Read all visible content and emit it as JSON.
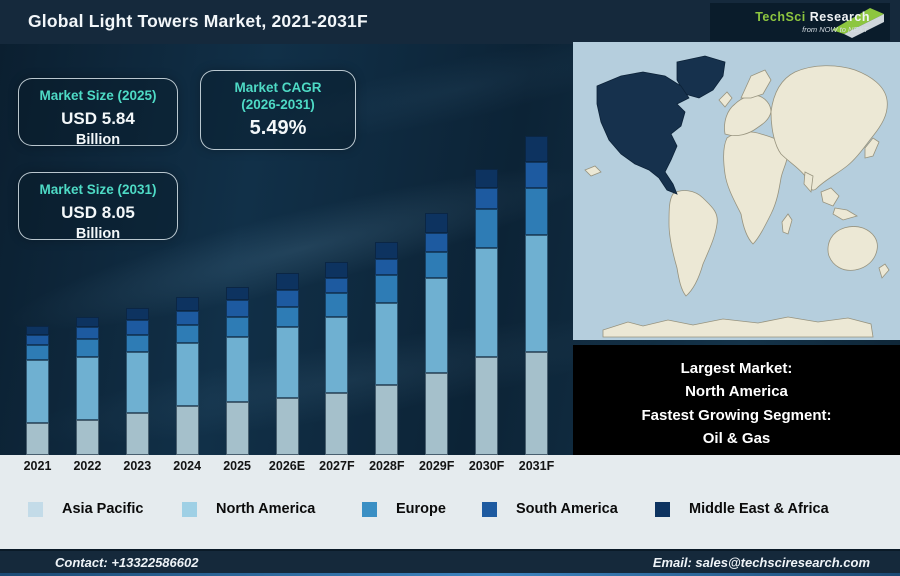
{
  "header": {
    "title": "Global Light Towers Market, 2021-2031F",
    "logo": {
      "brand_primary": "TechSci",
      "brand_secondary": "Research",
      "tagline": "from NOW to NEXT"
    }
  },
  "stat_boxes": [
    {
      "title": "Market Size (2025)",
      "value": "USD 5.84",
      "unit": "Billion"
    },
    {
      "title": "Market CAGR (2026-2031)",
      "value": "5.49%",
      "unit": ""
    },
    {
      "title": "Market Size (2031)",
      "value": "USD 8.05",
      "unit": "Billion"
    }
  ],
  "highlight_box": {
    "lines": [
      "Largest Market:",
      "North America",
      "Fastest Growing Segment:",
      "Oil & Gas"
    ]
  },
  "chart_data": {
    "type": "bar",
    "stacked": true,
    "title": "Global Light Towers Market, 2021-2031F",
    "categories": [
      "2021",
      "2022",
      "2023",
      "2024",
      "2025",
      "2026E",
      "2027F",
      "2028F",
      "2029F",
      "2030F",
      "2031F"
    ],
    "value_unit": "relative height (no y-axis shown in figure; values are pixel-proportional)",
    "series": [
      {
        "name": "Asia Pacific",
        "color": "#a5c0cb",
        "values": [
          32,
          35,
          42,
          49,
          53,
          57,
          62,
          70,
          82,
          98,
          103
        ]
      },
      {
        "name": "North America",
        "color": "#6fb0d1",
        "values": [
          63,
          63,
          61,
          63,
          65,
          71,
          76,
          82,
          95,
          109,
          117
        ]
      },
      {
        "name": "Europe",
        "color": "#2e7cb5",
        "values": [
          15,
          18,
          17,
          18,
          20,
          20,
          24,
          28,
          26,
          39,
          47
        ]
      },
      {
        "name": "South America",
        "color": "#1d5aa0",
        "values": [
          10,
          12,
          15,
          14,
          17,
          17,
          15,
          16,
          19,
          21,
          26
        ]
      },
      {
        "name": "Middle East & Africa",
        "color": "#0d3360",
        "values": [
          9,
          10,
          12,
          14,
          13,
          17,
          16,
          17,
          20,
          19,
          26
        ]
      }
    ],
    "labeled_anchors": {
      "market_size_2025": "USD 5.84 Billion",
      "market_size_2031": "USD 8.05 Billion",
      "cagr_2026_2031": "5.49%"
    },
    "xlabel": "",
    "ylabel": "",
    "legend_position": "bottom",
    "grid": false
  },
  "map": {
    "highlight_region": "North America",
    "colors": {
      "ocean": "#b5cedd",
      "land": "#ece8d5",
      "land_outline": "#97937e",
      "highlight": "#16314d"
    }
  },
  "footer": {
    "contact": "Contact: +13322586602",
    "email": "Email: sales@techsciresearch.com"
  }
}
